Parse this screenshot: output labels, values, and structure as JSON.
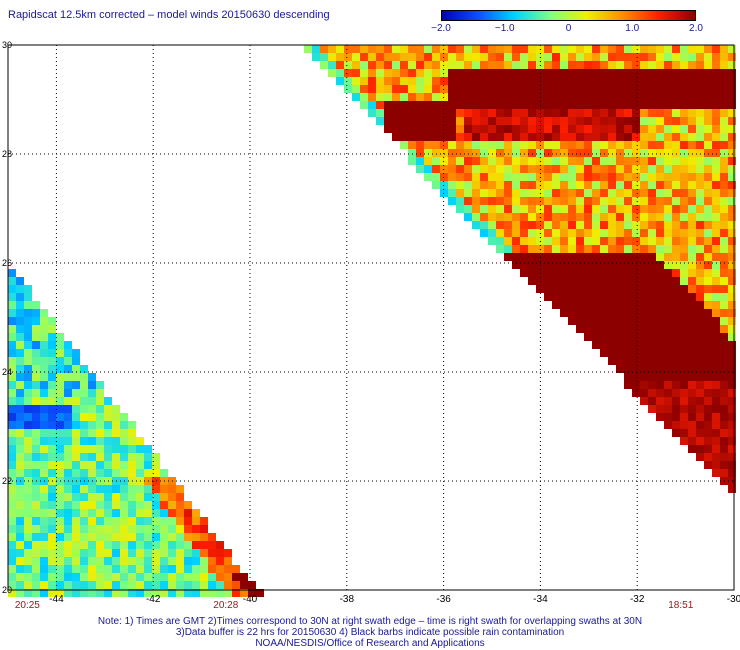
{
  "title": "Rapidscat 12.5km corrected – model winds 20150630 descending",
  "colorbar": {
    "labels": [
      "−2.0",
      "−1.0",
      "0",
      "1.0",
      "2.0"
    ],
    "label_values": [
      -2.0,
      -1.0,
      0,
      1.0,
      2.0
    ],
    "range": [
      -2.0,
      2.0
    ],
    "colors": [
      "#0000b4",
      "#0a50ff",
      "#00d2ff",
      "#7fff7f",
      "#f0f000",
      "#ff8c00",
      "#ff1e00",
      "#8c0000"
    ]
  },
  "map": {
    "lon_range": [
      -45,
      -30
    ],
    "lat_range": [
      20,
      30
    ],
    "lon_ticks": [
      "-44",
      "-42",
      "-40",
      "-38",
      "-36",
      "-34",
      "-32",
      "-30"
    ],
    "lon_tick_values": [
      -44,
      -42,
      -40,
      -38,
      -36,
      -34,
      -32,
      -30
    ],
    "lat_ticks": [
      "20",
      "22",
      "24",
      "26",
      "28",
      "30"
    ],
    "lat_tick_values": [
      20,
      22,
      24,
      26,
      28,
      30
    ],
    "grid": true,
    "swath_times": [
      {
        "time": "20:25",
        "lon": -44.6
      },
      {
        "time": "20:28",
        "lon": -40.5
      },
      {
        "time": "18:51",
        "lon": -31.1
      }
    ]
  },
  "notes": [
    "Note: 1) Times are GMT 2)Times correspond to 30N at right swath edge – time is right swath for overlapping swaths at 30N",
    "3)Data buffer is 22 hrs for 20150630 4) Black barbs indicate possible rain contamination",
    "NOAA/NESDIS/Office of Research and Applications"
  ]
}
